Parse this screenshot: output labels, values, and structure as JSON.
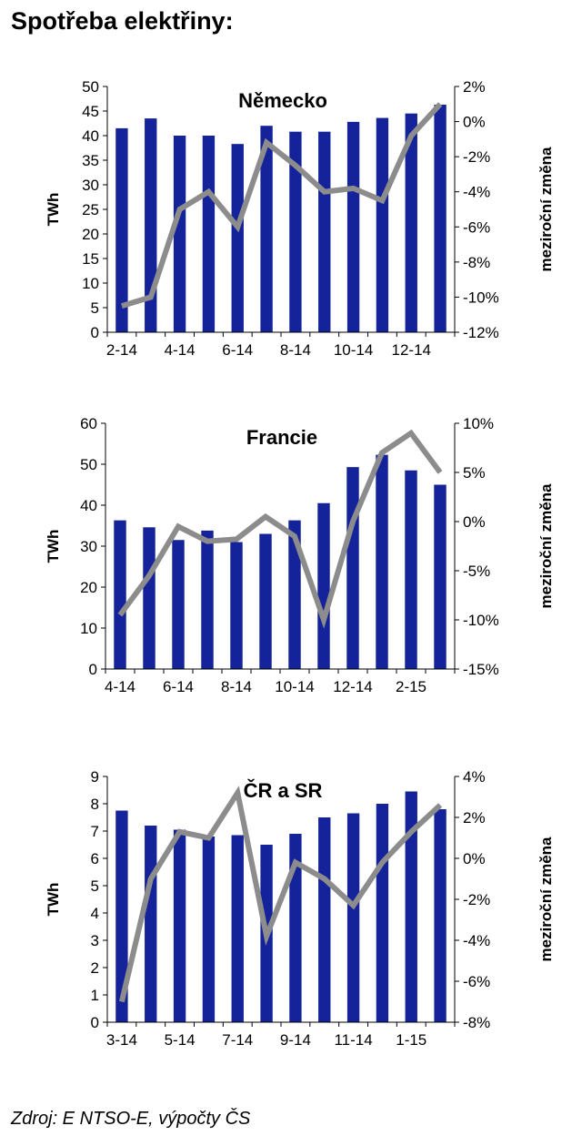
{
  "page_title": "Spotřeba elektřiny:",
  "source": "Zdroj: E NTSO-E, výpočty ČS",
  "colors": {
    "bars": "#14239a",
    "line": "#8c8c8c"
  },
  "chart_data": [
    {
      "type": "bar",
      "title": "Německo",
      "ylabel": "TWh",
      "y2label": "meziroční změna",
      "categories": [
        "2-14",
        "3-14",
        "4-14",
        "5-14",
        "6-14",
        "7-14",
        "8-14",
        "9-14",
        "10-14",
        "11-14",
        "12-14",
        "1-15"
      ],
      "x_tick_labels": [
        "2-14",
        "4-14",
        "6-14",
        "8-14",
        "10-14",
        "12-14"
      ],
      "series": [
        {
          "type": "bar",
          "axis": "left",
          "values": [
            41.5,
            43.5,
            40.0,
            40.0,
            38.3,
            42.0,
            40.8,
            40.8,
            42.8,
            43.6,
            44.5,
            46.3
          ]
        },
        {
          "type": "line",
          "axis": "right",
          "values": [
            -10.5,
            -10.0,
            -5.0,
            -4.0,
            -6.0,
            -1.2,
            -2.5,
            -4.0,
            -3.8,
            -4.5,
            -0.8,
            1.0
          ]
        }
      ],
      "ylim": [
        0,
        50
      ],
      "y_ticks": [
        0,
        5,
        10,
        15,
        20,
        25,
        30,
        35,
        40,
        45,
        50
      ],
      "y_tick_labels": [
        "0",
        "5",
        "10",
        "15",
        "20",
        "25",
        "30",
        "35",
        "40",
        "45",
        "50"
      ],
      "y2lim": [
        -12,
        2
      ],
      "y2_ticks": [
        -12,
        -10,
        -8,
        -6,
        -4,
        -2,
        0,
        2
      ],
      "y2_tick_labels": [
        "-12%",
        "-10%",
        "-8%",
        "-6%",
        "-4%",
        "-2%",
        "0%",
        "2%"
      ]
    },
    {
      "type": "bar",
      "title": "Francie",
      "ylabel": "TWh",
      "y2label": "meziroční změna",
      "categories": [
        "4-14",
        "5-14",
        "6-14",
        "7-14",
        "8-14",
        "9-14",
        "10-14",
        "11-14",
        "12-14",
        "1-15",
        "2-15",
        "3-15"
      ],
      "x_tick_labels": [
        "4-14",
        "6-14",
        "8-14",
        "10-14",
        "12-14",
        "2-15"
      ],
      "series": [
        {
          "type": "bar",
          "axis": "left",
          "values": [
            36.3,
            34.6,
            31.5,
            33.8,
            31.0,
            33.0,
            36.3,
            40.5,
            49.3,
            52.3,
            48.5,
            45.0
          ]
        },
        {
          "type": "line",
          "axis": "right",
          "values": [
            -9.5,
            -5.5,
            -0.5,
            -2.0,
            -1.8,
            0.5,
            -1.5,
            -10.0,
            0.0,
            7.0,
            9.0,
            5.0
          ]
        }
      ],
      "ylim": [
        0,
        60
      ],
      "y_ticks": [
        0,
        10,
        20,
        30,
        40,
        50,
        60
      ],
      "y_tick_labels": [
        "0",
        "10",
        "20",
        "30",
        "40",
        "50",
        "60"
      ],
      "y2lim": [
        -15,
        10
      ],
      "y2_ticks": [
        -15,
        -10,
        -5,
        0,
        5,
        10
      ],
      "y2_tick_labels": [
        "-15%",
        "-10%",
        "-5%",
        "0%",
        "5%",
        "10%"
      ]
    },
    {
      "type": "bar",
      "title": "ČR a SR",
      "ylabel": "TWh",
      "y2label": "meziroční změna",
      "categories": [
        "3-14",
        "4-14",
        "5-14",
        "6-14",
        "7-14",
        "8-14",
        "9-14",
        "10-14",
        "11-14",
        "12-14",
        "1-15",
        "2-15"
      ],
      "x_tick_labels": [
        "3-14",
        "5-14",
        "7-14",
        "9-14",
        "11-14",
        "1-15"
      ],
      "series": [
        {
          "type": "bar",
          "axis": "left",
          "values": [
            7.75,
            7.2,
            7.05,
            6.8,
            6.85,
            6.5,
            6.9,
            7.5,
            7.65,
            8.0,
            8.45,
            7.8
          ]
        },
        {
          "type": "line",
          "axis": "right",
          "values": [
            -7.0,
            -1.0,
            1.3,
            1.0,
            3.2,
            -3.8,
            -0.2,
            -1.0,
            -2.3,
            -0.2,
            1.3,
            2.6
          ]
        }
      ],
      "ylim": [
        0,
        9
      ],
      "y_ticks": [
        0,
        1,
        2,
        3,
        4,
        5,
        6,
        7,
        8,
        9
      ],
      "y_tick_labels": [
        "0",
        "1",
        "2",
        "3",
        "4",
        "5",
        "6",
        "7",
        "8",
        "9"
      ],
      "y2lim": [
        -8,
        4
      ],
      "y2_ticks": [
        -8,
        -6,
        -4,
        -2,
        0,
        2,
        4
      ],
      "y2_tick_labels": [
        "-8%",
        "-6%",
        "-4%",
        "-2%",
        "0%",
        "2%",
        "4%"
      ]
    }
  ]
}
